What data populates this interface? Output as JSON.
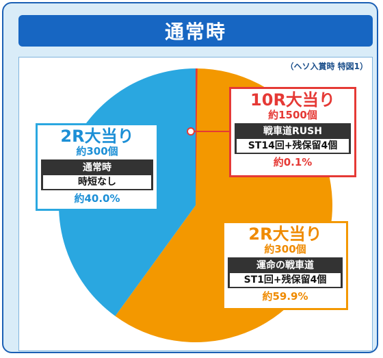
{
  "title": "通常時",
  "note": "（ヘソ入賞時 特図1）",
  "colors": {
    "blue": "#2aa7e0",
    "orange": "#f39800",
    "red": "#e53935",
    "dark": "#333333",
    "title_bg": "#1766c2"
  },
  "chart_data": {
    "type": "pie",
    "slices": [
      {
        "label": "10R大当り",
        "payout": "約1500個",
        "mode": "戦車道RUSH",
        "detail": "ST14回+残保留4個",
        "percent_label": "約0.1%",
        "value": 0.1,
        "color": "#e53935"
      },
      {
        "label": "2R大当り",
        "payout": "約300個",
        "mode": "運命の戦車道",
        "detail": "ST1回+残保留4個",
        "percent_label": "約59.9%",
        "value": 59.9,
        "color": "#f39800"
      },
      {
        "label": "2R大当り",
        "payout": "約300個",
        "mode": "通常時",
        "detail": "時短なし",
        "percent_label": "約40.0%",
        "value": 40.0,
        "color": "#2aa7e0"
      }
    ]
  }
}
